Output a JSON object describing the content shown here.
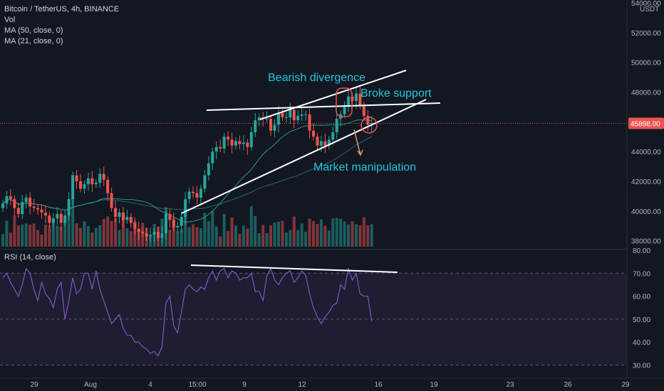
{
  "legend": {
    "symbol": "Bitcoin / TetherUS, 4h, BINANCE",
    "vol": "Vol",
    "ma50": "MA (50, close, 0)",
    "ma21": "MA (21, close, 0)"
  },
  "rsi_legend": "RSI (14, close)",
  "currency": "USDT",
  "current_price": "45898.00",
  "price_ticks": [
    "54000.00",
    "52000.00",
    "50000.00",
    "48000.00",
    "44000.00",
    "42000.00",
    "40000.00",
    "38000.00"
  ],
  "rsi_ticks": [
    "80.00",
    "70.00",
    "60.00",
    "50.00",
    "40.00",
    "30.00"
  ],
  "time_ticks": [
    "29",
    "Aug",
    "4",
    "15:00",
    "9",
    "12",
    "16",
    "19",
    "23",
    "26",
    "29"
  ],
  "annotations": {
    "bearish": "Bearish divergence",
    "broke": "Broke support",
    "manipulation": "Market manipulation"
  },
  "colors": {
    "background": "#131722",
    "up": "#26a69a",
    "down": "#ef5350",
    "ma": "#26a69a",
    "rsi": "#7e57c2",
    "annotation": "#26c6da"
  },
  "chart_data": {
    "type": "candlestick",
    "symbol": "BTCUSDT",
    "interval": "4h",
    "price_range": [
      37600,
      54000
    ],
    "rsi_range": [
      28,
      80
    ],
    "last_price": 45898,
    "closes": [
      40500,
      41000,
      40800,
      40200,
      39800,
      40600,
      40900,
      40300,
      40200,
      40100,
      39900,
      39700,
      39200,
      39500,
      39800,
      39200,
      39700,
      40800,
      42400,
      42000,
      41500,
      41800,
      42200,
      41800,
      41900,
      42500,
      42100,
      41200,
      40200,
      39600,
      39900,
      39400,
      39600,
      39200,
      38800,
      38600,
      38500,
      38300,
      38400,
      38600,
      38200,
      38500,
      39800,
      39400,
      38900,
      39000,
      39600,
      40800,
      41300,
      41200,
      40900,
      41500,
      42400,
      43200,
      44000,
      44300,
      44200,
      45000,
      44800,
      44400,
      44700,
      44500,
      44600,
      44300,
      45300,
      46100,
      46300,
      46200,
      46200,
      45400,
      45800,
      46600,
      46300,
      46300,
      46800,
      46100,
      46400,
      46500,
      46500,
      45400,
      45000,
      44400,
      44700,
      44400,
      44800,
      45300,
      46200,
      46500,
      47000,
      47700,
      47400,
      47900,
      47100,
      46400,
      45800,
      45900
    ],
    "rsi": [
      68,
      70,
      66,
      63,
      60,
      65,
      72,
      70,
      63,
      58,
      66,
      61,
      59,
      55,
      63,
      66,
      50,
      58,
      68,
      61,
      63,
      70,
      70,
      63,
      71,
      63,
      58,
      53,
      48,
      50,
      52,
      46,
      43,
      43,
      40,
      40,
      38,
      37,
      35,
      36,
      34,
      38,
      57,
      60,
      47,
      44,
      53,
      63,
      65,
      63,
      62,
      64,
      63,
      68,
      71,
      67,
      71,
      72,
      68,
      71,
      70,
      67,
      68,
      68,
      70,
      62,
      62,
      58,
      69,
      72,
      67,
      65,
      68,
      70,
      71,
      66,
      68,
      71,
      69,
      61,
      55,
      51,
      48,
      51,
      53,
      56,
      57,
      65,
      63,
      72,
      67,
      70,
      61,
      60,
      60,
      49
    ]
  }
}
